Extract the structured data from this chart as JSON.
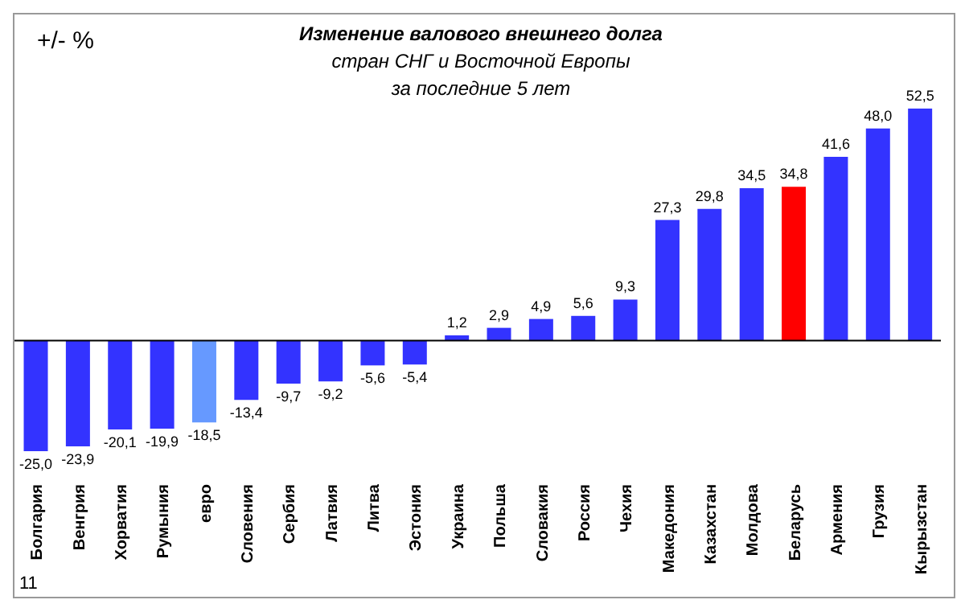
{
  "chart_data": {
    "type": "bar",
    "title": "Изменение валового  внешнего долга",
    "subtitle": "стран СНГ и Восточной  Европы\nза последние  5 лет",
    "ylabel": "+/- %",
    "categories": [
      "Болгария",
      "Венгрия",
      "Хорватия",
      "Румыния",
      "евро",
      "Словения",
      "Сербия",
      "Латвия",
      "Литва",
      "Эстония",
      "Украина",
      "Польша",
      "Словакия",
      "Россия",
      "Чехия",
      "Македония",
      "Казахстан",
      "Молдова",
      "Беларусь",
      "Армения",
      "Грузия",
      "Кырызстан"
    ],
    "values": [
      -25.0,
      -23.9,
      -20.1,
      -19.9,
      -18.5,
      -13.4,
      -9.7,
      -9.2,
      -5.6,
      -5.4,
      1.2,
      2.9,
      4.9,
      5.6,
      9.3,
      27.3,
      29.8,
      34.5,
      34.8,
      41.6,
      48.0,
      52.5
    ],
    "value_labels": [
      "-25,0",
      "-23,9",
      "-20,1",
      "-19,9",
      "-18,5",
      "-13,4",
      "-9,7",
      "-9,2",
      "-5,6",
      "-5,4",
      "1,2",
      "2,9",
      "4,9",
      "5,6",
      "9,3",
      "27,3",
      "29,8",
      "34,5",
      "34,8",
      "41,6",
      "48,0",
      "52,5"
    ],
    "colors": [
      "#3333ff",
      "#3333ff",
      "#3333ff",
      "#3333ff",
      "#6699ff",
      "#3333ff",
      "#3333ff",
      "#3333ff",
      "#3333ff",
      "#3333ff",
      "#3333ff",
      "#3333ff",
      "#3333ff",
      "#3333ff",
      "#3333ff",
      "#3333ff",
      "#3333ff",
      "#3333ff",
      "#ff0000",
      "#3333ff",
      "#3333ff",
      "#3333ff"
    ],
    "annotations": [
      "11"
    ]
  }
}
